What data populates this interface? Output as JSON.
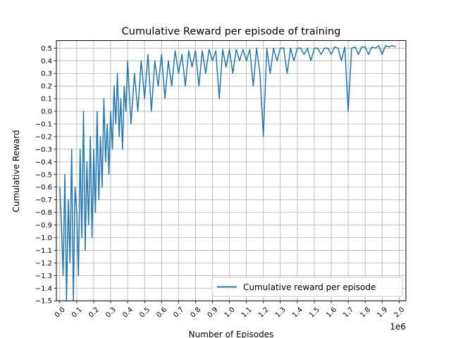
{
  "chart_data": {
    "type": "line",
    "title": "Cumulative Reward per episode of training",
    "xlabel": "Number of Episodes",
    "ylabel": "Cumulative Reward",
    "x_offset_label": "1e6",
    "xlim": [
      -0.02,
      2.04
    ],
    "ylim": [
      -1.5,
      0.56
    ],
    "x_ticks": [
      0.0,
      0.1,
      0.2,
      0.3,
      0.4,
      0.5,
      0.6,
      0.7,
      0.8,
      0.9,
      1.0,
      1.1,
      1.2,
      1.3,
      1.4,
      1.5,
      1.6,
      1.7,
      1.8,
      1.9,
      2.0
    ],
    "x_tick_labels": [
      "0.0",
      "0.1",
      "0.2",
      "0.3",
      "0.4",
      "0.5",
      "0.6",
      "0.7",
      "0.8",
      "0.9",
      "1.0",
      "1.1",
      "1.2",
      "1.3",
      "1.4",
      "1.5",
      "1.6",
      "1.7",
      "1.8",
      "1.9",
      "2.0"
    ],
    "y_ticks": [
      0.5,
      0.4,
      0.3,
      0.2,
      0.1,
      0.0,
      -0.1,
      -0.2,
      -0.3,
      -0.4,
      -0.5,
      -0.6,
      -0.7,
      -0.8,
      -0.9,
      -1.0,
      -1.1,
      -1.2,
      -1.3,
      -1.4,
      -1.5
    ],
    "y_tick_labels": [
      "0.5",
      "0.4",
      "0.3",
      "0.2",
      "0.1",
      "0.0",
      "−0.1",
      "−0.2",
      "−0.3",
      "−0.4",
      "−0.5",
      "−0.6",
      "−0.7",
      "−0.8",
      "−0.9",
      "−1.0",
      "−1.1",
      "−1.2",
      "−1.3",
      "−1.4",
      "−1.5"
    ],
    "grid": true,
    "legend_position": "bottom-right",
    "series": [
      {
        "name": "Cumulative reward per episode",
        "color": "#1f77b4",
        "x": [
          0.0,
          0.01,
          0.02,
          0.03,
          0.04,
          0.05,
          0.06,
          0.07,
          0.08,
          0.09,
          0.1,
          0.11,
          0.12,
          0.13,
          0.14,
          0.15,
          0.16,
          0.17,
          0.18,
          0.19,
          0.2,
          0.21,
          0.22,
          0.23,
          0.24,
          0.25,
          0.26,
          0.27,
          0.28,
          0.29,
          0.3,
          0.31,
          0.32,
          0.33,
          0.34,
          0.35,
          0.36,
          0.37,
          0.38,
          0.39,
          0.4,
          0.42,
          0.44,
          0.46,
          0.48,
          0.5,
          0.52,
          0.54,
          0.56,
          0.58,
          0.6,
          0.62,
          0.64,
          0.66,
          0.68,
          0.7,
          0.72,
          0.74,
          0.76,
          0.78,
          0.8,
          0.82,
          0.84,
          0.86,
          0.88,
          0.9,
          0.92,
          0.94,
          0.96,
          0.98,
          1.0,
          1.02,
          1.04,
          1.06,
          1.08,
          1.1,
          1.12,
          1.14,
          1.16,
          1.18,
          1.2,
          1.22,
          1.24,
          1.26,
          1.28,
          1.3,
          1.32,
          1.34,
          1.36,
          1.38,
          1.4,
          1.42,
          1.44,
          1.46,
          1.48,
          1.5,
          1.52,
          1.54,
          1.56,
          1.58,
          1.6,
          1.62,
          1.64,
          1.66,
          1.68,
          1.7,
          1.72,
          1.74,
          1.76,
          1.78,
          1.8,
          1.82,
          1.84,
          1.86,
          1.88,
          1.9,
          1.92,
          1.94,
          1.96,
          1.98
        ],
        "y": [
          -0.6,
          -0.9,
          -1.3,
          -0.5,
          -1.5,
          -0.7,
          -1.2,
          -0.3,
          -1.5,
          -0.6,
          -0.8,
          -1.3,
          -0.3,
          -1.0,
          0.0,
          -1.1,
          -0.4,
          -0.9,
          -0.2,
          -1.0,
          -0.3,
          -0.8,
          0.0,
          -0.7,
          -0.2,
          -0.6,
          0.1,
          -0.4,
          -0.1,
          -0.5,
          0.0,
          -0.3,
          0.2,
          -0.1,
          0.3,
          -0.2,
          0.1,
          -0.3,
          0.2,
          0.0,
          0.4,
          -0.1,
          0.3,
          0.0,
          0.4,
          0.1,
          0.45,
          0.0,
          0.4,
          0.2,
          0.45,
          0.1,
          0.4,
          0.2,
          0.48,
          0.3,
          0.45,
          0.2,
          0.48,
          0.35,
          0.48,
          0.2,
          0.48,
          0.3,
          0.49,
          0.4,
          0.48,
          0.1,
          0.49,
          0.35,
          0.49,
          0.3,
          0.49,
          0.4,
          0.49,
          0.4,
          0.49,
          0.2,
          0.5,
          0.3,
          -0.2,
          0.5,
          0.3,
          0.5,
          0.4,
          0.5,
          0.5,
          0.3,
          0.5,
          0.4,
          0.5,
          0.5,
          0.45,
          0.5,
          0.4,
          0.5,
          0.5,
          0.45,
          0.5,
          0.5,
          0.45,
          0.51,
          0.5,
          0.4,
          0.51,
          0.0,
          0.5,
          0.51,
          0.45,
          0.51,
          0.51,
          0.45,
          0.51,
          0.5,
          0.52,
          0.45,
          0.52,
          0.51,
          0.52,
          0.51
        ]
      }
    ]
  }
}
